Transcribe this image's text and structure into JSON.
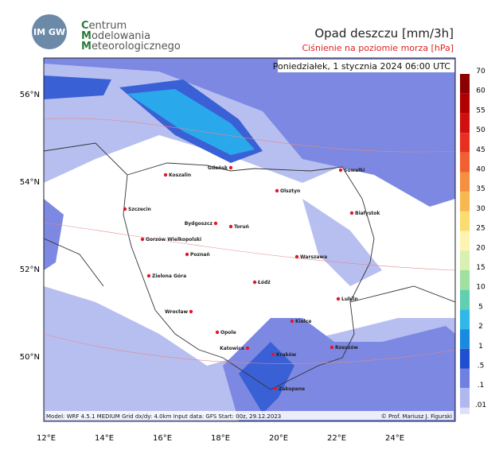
{
  "header": {
    "logo": "IM GW",
    "org_lines": [
      "Centrum",
      "Modelowania",
      "Meteorologicznego"
    ],
    "title": "Opad deszczu [mm/3h]",
    "subtitle": "Ciśnienie na poziomie morza [hPa]",
    "date": "Poniedziałek, 1 stycznia 2024 06:00 UTC"
  },
  "map": {
    "lat_labels": [
      "56°N",
      "54°N",
      "52°N",
      "50°N"
    ],
    "lon_labels": [
      "12°E",
      "14°E",
      "16°E",
      "18°E",
      "20°E",
      "22°E",
      "24°E"
    ],
    "cities": [
      "Koszalin",
      "Gdańsk",
      "Suwałki",
      "Olsztyn",
      "Szczecin",
      "Białystok",
      "Bydgoszcz",
      "Toruń",
      "Gorzów Wielkopolski",
      "Poznań",
      "Warszawa",
      "Zielona Góra",
      "Łódź",
      "Lublin",
      "Wrocław",
      "Kielce",
      "Opole",
      "Katowice",
      "Kraków",
      "Rzeszów",
      "Zakopane"
    ]
  },
  "colorbar": {
    "labels": [
      "70",
      "60",
      "55",
      "50",
      "45",
      "40",
      "35",
      "30",
      "25",
      "20",
      "15",
      "10",
      "5",
      "2",
      "1",
      ".5",
      ".1",
      ".01"
    ]
  },
  "footer": {
    "model": "Model: WRF 4.5.1 MEDIUM   Grid dx/dy: 4.0km   Input data: GFS   Start: 00z, 29.12.2023",
    "credit": "© Prof. Mariusz J. Figurski"
  }
}
